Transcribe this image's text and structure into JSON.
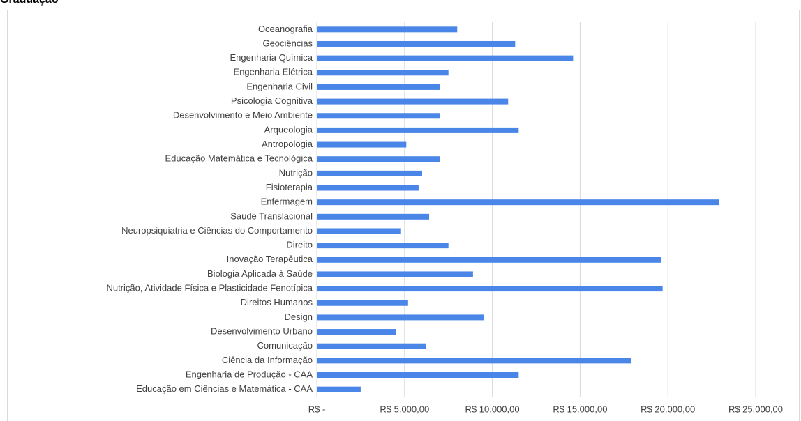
{
  "chart_data": {
    "type": "bar",
    "orientation": "horizontal",
    "title": "Graduação",
    "categories": [
      "Oceanografia",
      "Geociências",
      "Engenharia Química",
      "Engenharia Elétrica",
      "Engenharia Civil",
      "Psicologia Cognitiva",
      "Desenvolvimento e Meio Ambiente",
      "Arqueologia",
      "Antropologia",
      "Educação Matemática e Tecnológica",
      "Nutrição",
      "Fisioterapia",
      "Enfermagem",
      "Saúde Translacional",
      "Neuropsiquiatria e Ciências do Comportamento",
      "Direito",
      "Inovação Terapêutica",
      "Biologia Aplicada à Saúde",
      "Nutrição, Atividade Física e Plasticidade Fenotípica",
      "Direitos Humanos",
      "Design",
      "Desenvolvimento Urbano",
      "Comunicação",
      "Ciência da Informação",
      "Engenharia de Produção - CAA",
      "Educação em Ciências e Matemática - CAA"
    ],
    "values": [
      8000,
      11300,
      14600,
      7500,
      7000,
      10900,
      7000,
      11500,
      5100,
      7000,
      6000,
      5800,
      22900,
      6400,
      4800,
      7500,
      19600,
      8900,
      19700,
      5200,
      9500,
      4500,
      6200,
      17900,
      11500,
      2500
    ],
    "color": "#4a86e8",
    "xlim": [
      0,
      25000
    ],
    "xticks": [
      {
        "value": 0,
        "label": "R$ -"
      },
      {
        "value": 5000,
        "label": "R$ 5.000,00"
      },
      {
        "value": 10000,
        "label": "R$ 10.000,00"
      },
      {
        "value": 15000,
        "label": "R$ 15.000,00"
      },
      {
        "value": 20000,
        "label": "R$ 20.000,00"
      },
      {
        "value": 25000,
        "label": "R$ 25.000,00"
      }
    ],
    "grid": true
  }
}
